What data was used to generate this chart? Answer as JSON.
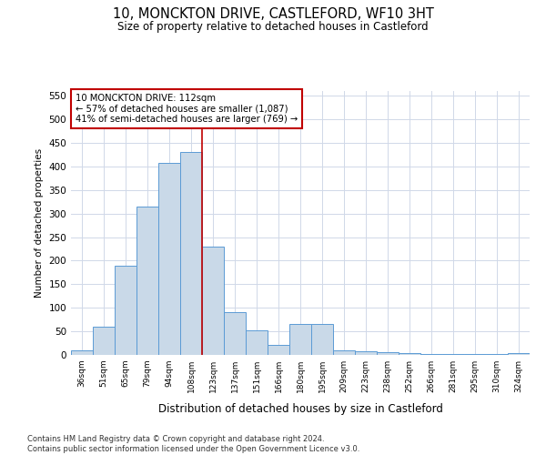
{
  "title": "10, MONCKTON DRIVE, CASTLEFORD, WF10 3HT",
  "subtitle": "Size of property relative to detached houses in Castleford",
  "xlabel": "Distribution of detached houses by size in Castleford",
  "ylabel": "Number of detached properties",
  "categories": [
    "36sqm",
    "51sqm",
    "65sqm",
    "79sqm",
    "94sqm",
    "108sqm",
    "123sqm",
    "137sqm",
    "151sqm",
    "166sqm",
    "180sqm",
    "195sqm",
    "209sqm",
    "223sqm",
    "238sqm",
    "252sqm",
    "266sqm",
    "281sqm",
    "295sqm",
    "310sqm",
    "324sqm"
  ],
  "values": [
    10,
    60,
    190,
    315,
    408,
    430,
    230,
    90,
    52,
    22,
    65,
    65,
    10,
    8,
    5,
    3,
    1,
    1,
    1,
    1,
    3
  ],
  "bar_color": "#c9d9e8",
  "bar_edge_color": "#5b9bd5",
  "vline_x": 5.5,
  "vline_color": "#c00000",
  "annotation_text": "10 MONCKTON DRIVE: 112sqm\n← 57% of detached houses are smaller (1,087)\n41% of semi-detached houses are larger (769) →",
  "annotation_box_color": "#ffffff",
  "annotation_box_edge": "#c00000",
  "ylim": [
    0,
    560
  ],
  "yticks": [
    0,
    50,
    100,
    150,
    200,
    250,
    300,
    350,
    400,
    450,
    500,
    550
  ],
  "footer": "Contains HM Land Registry data © Crown copyright and database right 2024.\nContains public sector information licensed under the Open Government Licence v3.0.",
  "bg_color": "#ffffff",
  "grid_color": "#d0d8e8"
}
